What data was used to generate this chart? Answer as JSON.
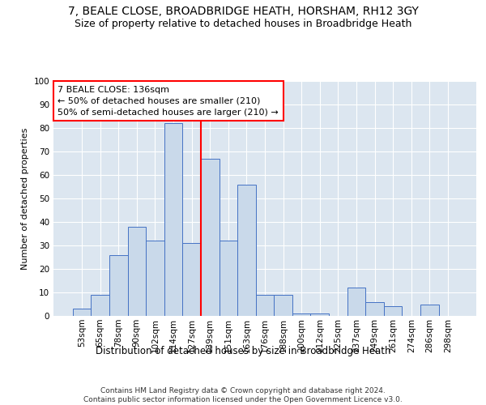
{
  "title1": "7, BEALE CLOSE, BROADBRIDGE HEATH, HORSHAM, RH12 3GY",
  "title2": "Size of property relative to detached houses in Broadbridge Heath",
  "xlabel": "Distribution of detached houses by size in Broadbridge Heath",
  "ylabel": "Number of detached properties",
  "footnote": "Contains HM Land Registry data © Crown copyright and database right 2024.\nContains public sector information licensed under the Open Government Licence v3.0.",
  "bar_labels": [
    "53sqm",
    "65sqm",
    "78sqm",
    "90sqm",
    "102sqm",
    "114sqm",
    "127sqm",
    "139sqm",
    "151sqm",
    "163sqm",
    "176sqm",
    "188sqm",
    "200sqm",
    "212sqm",
    "225sqm",
    "237sqm",
    "249sqm",
    "261sqm",
    "274sqm",
    "286sqm",
    "298sqm"
  ],
  "bar_values": [
    3,
    9,
    26,
    38,
    32,
    82,
    31,
    67,
    32,
    56,
    9,
    9,
    1,
    1,
    0,
    12,
    6,
    4,
    0,
    5,
    0
  ],
  "bar_color": "#c9d9ea",
  "bar_edge_color": "#4472c4",
  "vline_x": 6.5,
  "vline_color": "red",
  "annotation_text": "7 BEALE CLOSE: 136sqm\n← 50% of detached houses are smaller (210)\n50% of semi-detached houses are larger (210) →",
  "annotation_box_color": "white",
  "annotation_box_edgecolor": "red",
  "ylim": [
    0,
    100
  ],
  "yticks": [
    0,
    10,
    20,
    30,
    40,
    50,
    60,
    70,
    80,
    90,
    100
  ],
  "background_color": "#dce6f0",
  "grid_color": "white",
  "title1_fontsize": 10,
  "title2_fontsize": 9,
  "xlabel_fontsize": 8.5,
  "ylabel_fontsize": 8,
  "footnote_fontsize": 6.5,
  "tick_fontsize": 7.5,
  "ann_fontsize": 8
}
